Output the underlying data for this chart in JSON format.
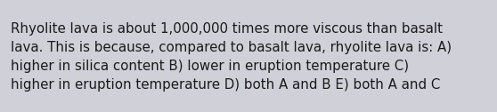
{
  "text": "Rhyolite lava is about 1,000,000 times more viscous than basalt\nlava. This is because, compared to basalt lava, rhyolite lava is: A)\nhigher in silica content B) lower in eruption temperature C)\nhigher in eruption temperature D) both A and B E) both A and C",
  "background_color": "#d0d0d8",
  "text_color": "#1a1a1a",
  "font_size": 10.8,
  "fig_width": 5.58,
  "fig_height": 1.26,
  "dpi": 100
}
